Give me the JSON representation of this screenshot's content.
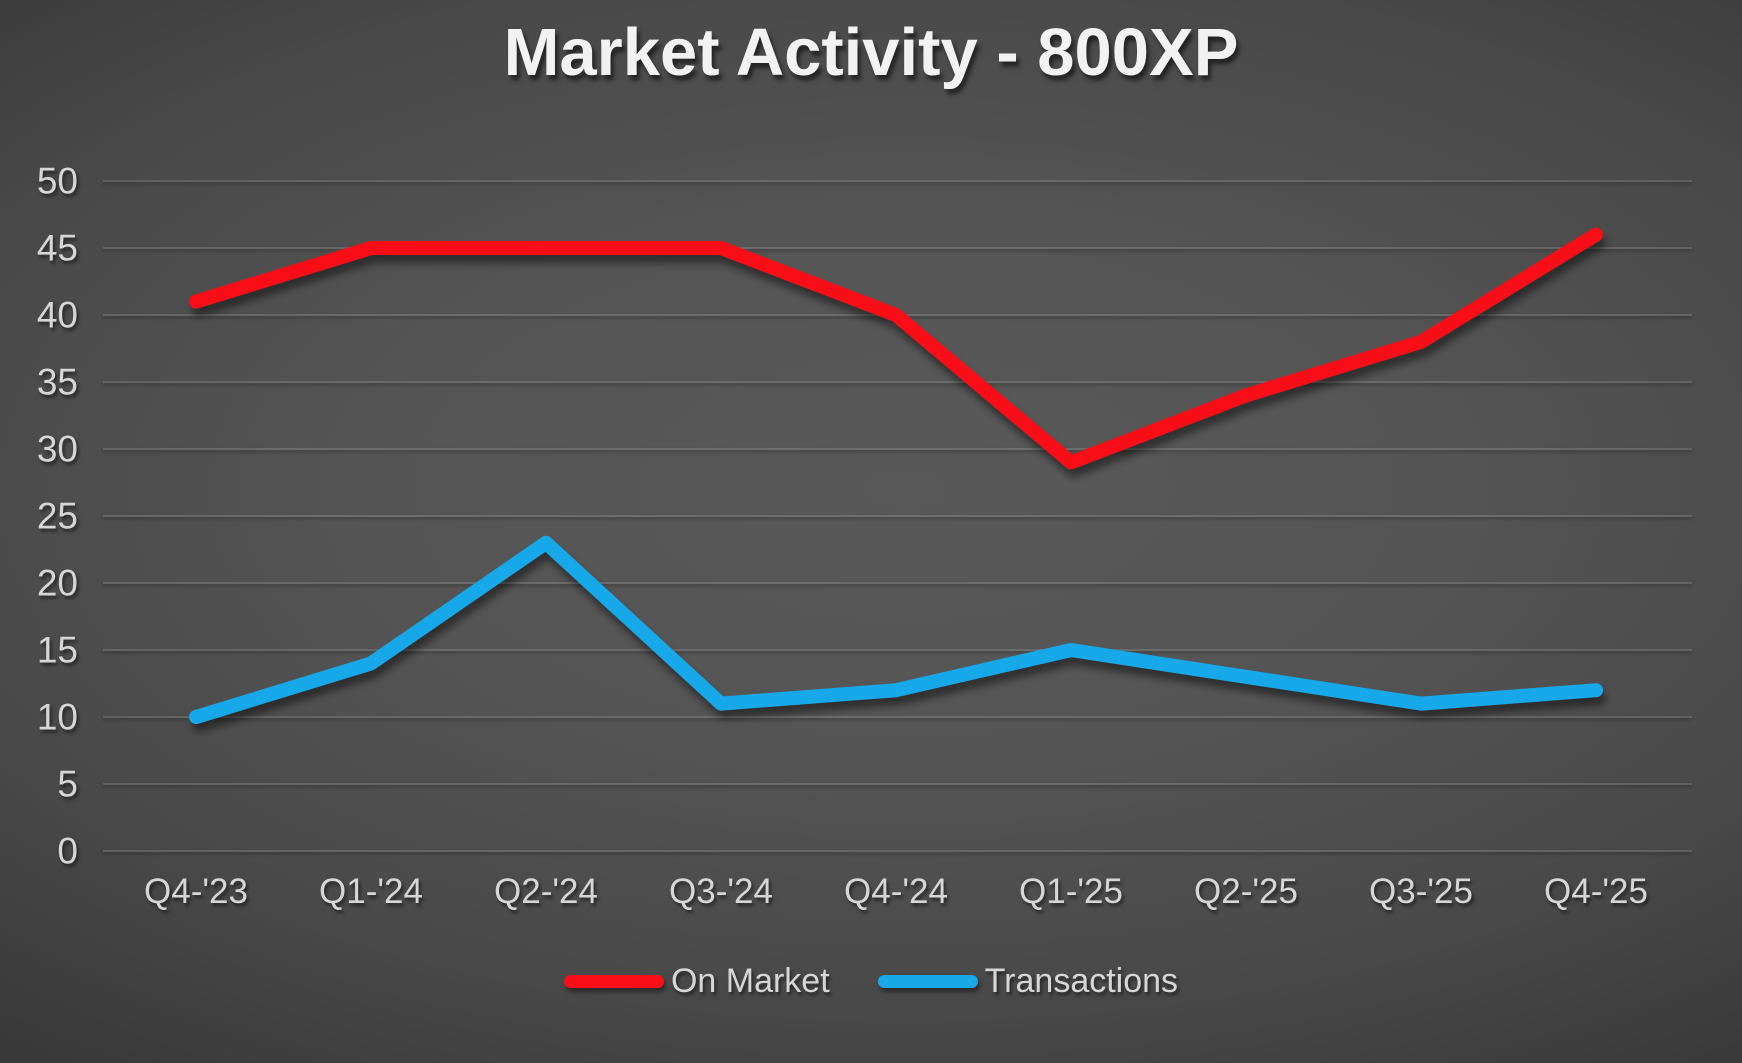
{
  "title": "Market Activity - 800XP",
  "colors": {
    "background_center": "#585858",
    "background_edge": "#202020",
    "on_market_red": "#f90d16",
    "transactions_blue": "#18a8e8",
    "text_light": "#d6d6d6",
    "title_white": "#f2f2f2"
  },
  "chart_data": {
    "type": "line",
    "title": "Market Activity - 800XP",
    "categories": [
      "Q4-'23",
      "Q1-'24",
      "Q2-'24",
      "Q3-'24",
      "Q4-'24",
      "Q1-'25",
      "Q2-'25",
      "Q3-'25",
      "Q4-'25"
    ],
    "series": [
      {
        "name": "On Market",
        "color": "#f90d16",
        "values": [
          41,
          45,
          45,
          45,
          40,
          29,
          34,
          38,
          46
        ]
      },
      {
        "name": "Transactions",
        "color": "#18a8e8",
        "values": [
          10,
          14,
          23,
          11,
          12,
          15,
          13,
          11,
          12
        ]
      }
    ],
    "xlabel": "",
    "ylabel": "",
    "ylim": [
      0,
      50
    ],
    "yticks": [
      0,
      5,
      10,
      15,
      20,
      25,
      30,
      35,
      40,
      45,
      50
    ],
    "grid": "horizontal",
    "legend_position": "bottom"
  }
}
